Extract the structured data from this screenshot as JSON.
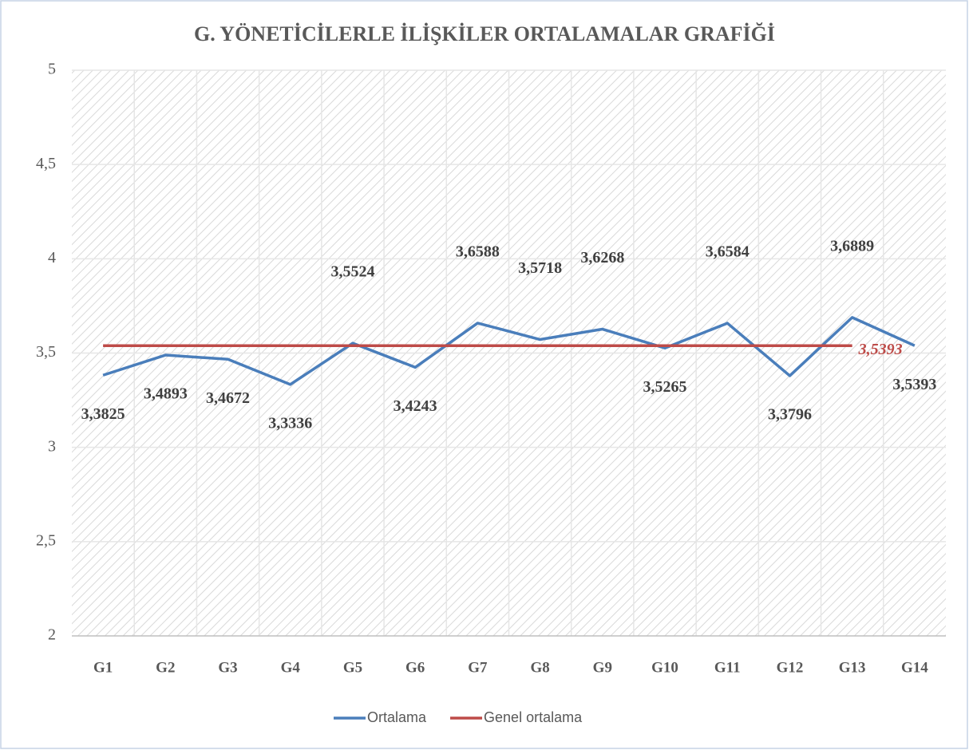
{
  "chart_data": {
    "type": "line",
    "title": "G. YÖNETİCİLERLE İLİŞKİLER ORTALAMALAR GRAFİĞİ",
    "categories": [
      "G1",
      "G2",
      "G3",
      "G4",
      "G5",
      "G6",
      "G7",
      "G8",
      "G9",
      "G10",
      "G11",
      "G12",
      "G13",
      "G14"
    ],
    "series": [
      {
        "name": "Ortalama",
        "color": "#4a7ebb",
        "values": [
          3.3825,
          3.4893,
          3.4672,
          3.3336,
          3.5524,
          3.4243,
          3.6588,
          3.5718,
          3.6268,
          3.5265,
          3.6584,
          3.3796,
          3.6889,
          3.5393
        ],
        "value_labels": [
          "3,3825",
          "3,4893",
          "3,4672",
          "3,3336",
          "3,5524",
          "3,4243",
          "3,6588",
          "3,5718",
          "3,6268",
          "3,5265",
          "3,6584",
          "3,3796",
          "3,6889",
          "3,5393"
        ]
      },
      {
        "name": "Genel ortalama",
        "color": "#be4b48",
        "values": [
          3.5393,
          3.5393,
          3.5393,
          3.5393,
          3.5393,
          3.5393,
          3.5393,
          3.5393,
          3.5393,
          3.5393,
          3.5393,
          3.5393,
          3.5393,
          null
        ],
        "value_labels": [
          null,
          null,
          null,
          null,
          null,
          null,
          null,
          null,
          null,
          null,
          null,
          null,
          "3,5393",
          null
        ]
      }
    ],
    "ylim": [
      2,
      5
    ],
    "yticks": [
      2,
      {
        "value": 2.5,
        "label": "2,5"
      },
      3,
      {
        "value": 3.5,
        "label": "3,5"
      },
      4,
      {
        "value": 4.5,
        "label": "4,5"
      },
      5
    ],
    "grid": true,
    "legend": "bottom"
  }
}
